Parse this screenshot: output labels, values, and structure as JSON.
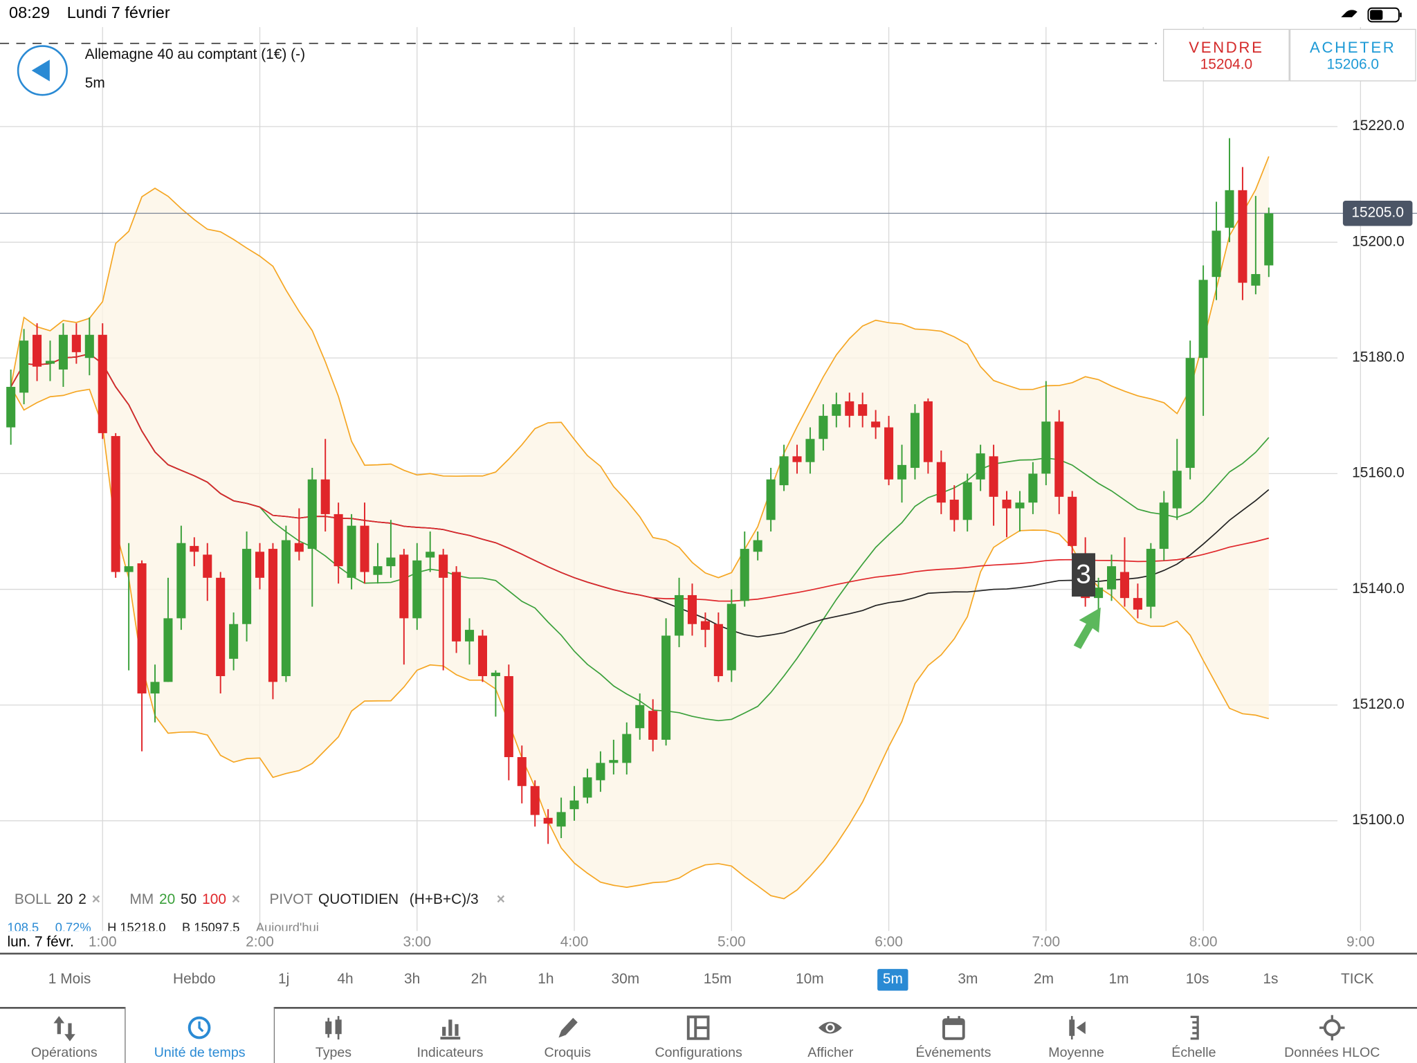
{
  "status_bar": {
    "time": "08:29",
    "date": "Lundi 7 février"
  },
  "instrument": {
    "title": "Allemagne 40 au comptant (1€) (-)",
    "timeframe": "5m"
  },
  "trade": {
    "sell_label": "VENDRE",
    "sell_price": "15204.0",
    "buy_label": "ACHETER",
    "buy_price": "15206.0"
  },
  "colors": {
    "up": "#3aa03a",
    "down": "#e0262a",
    "boll": "#f5a623",
    "ma20": "#3aa03a",
    "ma50": "#222222",
    "ma100": "#e0262a",
    "accent": "#2a8ad4"
  },
  "current_price": {
    "value": 15205.0,
    "label": "15205.0"
  },
  "indicators": {
    "boll": {
      "name": "BOLL",
      "p1": "20",
      "p2": "2"
    },
    "mm": {
      "name": "MM",
      "p1": "20",
      "p2": "50",
      "p3": "100"
    },
    "pivot": {
      "name": "PIVOT",
      "p1": "QUOTIDIEN",
      "p2": "(H+B+C)/3"
    },
    "remove": "×"
  },
  "stats": {
    "change": "108.5",
    "change_pct": "0.72%",
    "high": "H 15218.0",
    "low": "B 15097.5",
    "period": "Aujourd'hui"
  },
  "marker": {
    "label": "3",
    "time_index": 82
  },
  "chart_data": {
    "type": "candlestick",
    "interval": "5m",
    "first_candle_time": "0:25",
    "date_label": "lun. 7 févr.",
    "ylim": [
      15085,
      15230
    ],
    "yticks": [
      15220,
      15200,
      15180,
      15160,
      15140,
      15120,
      15100
    ],
    "ytick_labels": [
      "15220.0",
      "15200.0",
      "15180.0",
      "15160.0",
      "15140.0",
      "15120.0",
      "15100.0"
    ],
    "xticks": [
      {
        "label": "1:00",
        "index": 7
      },
      {
        "label": "2:00",
        "index": 19
      },
      {
        "label": "3:00",
        "index": 31
      },
      {
        "label": "4:00",
        "index": 43
      },
      {
        "label": "5:00",
        "index": 55
      },
      {
        "label": "6:00",
        "index": 67
      },
      {
        "label": "7:00",
        "index": 79
      },
      {
        "label": "8:00",
        "index": 91
      },
      {
        "label": "9:00",
        "index": 103
      }
    ],
    "ohlc": [
      [
        15168,
        15178,
        15165,
        15175
      ],
      [
        15174,
        15185,
        15172,
        15183
      ],
      [
        15184,
        15186,
        15176,
        15178.5
      ],
      [
        15179,
        15183,
        15176,
        15179.5
      ],
      [
        15178,
        15186,
        15175,
        15184
      ],
      [
        15184,
        15186,
        15179,
        15181
      ],
      [
        15180,
        15187,
        15177,
        15184
      ],
      [
        15184,
        15186,
        15166,
        15167
      ],
      [
        15166.5,
        15167,
        15142,
        15143
      ],
      [
        15143,
        15148,
        15126,
        15144
      ],
      [
        15144.5,
        15145,
        15112,
        15122
      ],
      [
        15122,
        15127,
        15117,
        15124
      ],
      [
        15124,
        15142,
        15124,
        15135
      ],
      [
        15135,
        15151,
        15133,
        15148
      ],
      [
        15147.5,
        15149,
        15144,
        15146.5
      ],
      [
        15146,
        15148,
        15138,
        15142
      ],
      [
        15142,
        15143,
        15122,
        15125
      ],
      [
        15128,
        15136,
        15126,
        15134
      ],
      [
        15134,
        15150,
        15131,
        15147
      ],
      [
        15146.5,
        15148,
        15140,
        15142
      ],
      [
        15147,
        15148,
        15121,
        15124
      ],
      [
        15125,
        15151,
        15124,
        15148.5
      ],
      [
        15148,
        15154,
        15145,
        15146.5
      ],
      [
        15147,
        15161,
        15137,
        15159
      ],
      [
        15159,
        15166,
        15150,
        15153
      ],
      [
        15153,
        15155,
        15141,
        15144
      ],
      [
        15142,
        15153,
        15140,
        15151
      ],
      [
        15151,
        15155,
        15141,
        15143
      ],
      [
        15142.5,
        15148,
        15141,
        15144
      ],
      [
        15144,
        15152,
        15142,
        15145.5
      ],
      [
        15146,
        15147,
        15127,
        15135
      ],
      [
        15135,
        15148,
        15133,
        15145
      ],
      [
        15145.5,
        15150,
        15143,
        15146.5
      ],
      [
        15146,
        15147,
        15126,
        15142
      ],
      [
        15143,
        15144,
        15129,
        15131
      ],
      [
        15131,
        15135,
        15127,
        15133
      ],
      [
        15132,
        15133,
        15124,
        15125
      ],
      [
        15125,
        15126,
        15118,
        15125.6
      ],
      [
        15125,
        15127,
        15107,
        15111
      ],
      [
        15111,
        15113,
        15103,
        15106
      ],
      [
        15106,
        15107,
        15099,
        15101
      ],
      [
        15100.5,
        15102,
        15096,
        15099.5
      ],
      [
        15099,
        15104,
        15097,
        15101.5
      ],
      [
        15102,
        15106,
        15100,
        15103.5
      ],
      [
        15104,
        15109,
        15103,
        15107.5
      ],
      [
        15107,
        15112,
        15105,
        15110
      ],
      [
        15110,
        15114,
        15108,
        15110.5
      ],
      [
        15110,
        15117,
        15108,
        15115
      ],
      [
        15116,
        15122,
        15114,
        15120
      ],
      [
        15119,
        15121,
        15112,
        15114
      ],
      [
        15114,
        15135,
        15113,
        15132
      ],
      [
        15132,
        15142,
        15130,
        15139
      ],
      [
        15139,
        15141,
        15132,
        15134
      ],
      [
        15134.5,
        15136,
        15130,
        15133
      ],
      [
        15134,
        15136,
        15124,
        15125
      ],
      [
        15126,
        15140,
        15124,
        15137.5
      ],
      [
        15138,
        15150,
        15137,
        15147
      ],
      [
        15146.5,
        15150,
        15145,
        15148.5
      ],
      [
        15152,
        15161,
        15150,
        15159
      ],
      [
        15158,
        15165,
        15157,
        15163
      ],
      [
        15163,
        15165,
        15160,
        15162
      ],
      [
        15162,
        15168,
        15160,
        15166
      ],
      [
        15166,
        15172,
        15164,
        15170
      ],
      [
        15170,
        15174,
        15168,
        15172
      ],
      [
        15172.5,
        15174,
        15168,
        15170
      ],
      [
        15172,
        15174,
        15168,
        15170
      ],
      [
        15169,
        15171,
        15166,
        15168
      ],
      [
        15168,
        15170,
        15158,
        15159
      ],
      [
        15159,
        15165,
        15155,
        15161.5
      ],
      [
        15161,
        15172,
        15159,
        15170.5
      ],
      [
        15172.5,
        15173,
        15160,
        15162
      ],
      [
        15162,
        15164,
        15153,
        15155
      ],
      [
        15155.5,
        15158,
        15150,
        15152
      ],
      [
        15152,
        15160,
        15150,
        15158.5
      ],
      [
        15159,
        15165,
        15157,
        15163.5
      ],
      [
        15163,
        15165,
        15151,
        15156
      ],
      [
        15155.5,
        15157,
        15149,
        15154
      ],
      [
        15154,
        15157,
        15150,
        15155
      ],
      [
        15155,
        15162,
        15153,
        15160
      ],
      [
        15160,
        15176,
        15158,
        15169
      ],
      [
        15169,
        15171,
        15153,
        15156
      ],
      [
        15156,
        15157,
        15146,
        15147.5
      ],
      [
        15146,
        15149,
        15137,
        15138.5
      ],
      [
        15138.5,
        15142,
        15136,
        15140.3
      ],
      [
        15140,
        15146,
        15138,
        15144
      ],
      [
        15143,
        15149,
        15137,
        15138.5
      ],
      [
        15138.5,
        15141,
        15135,
        15136.5
      ],
      [
        15137,
        15148,
        15135,
        15147
      ],
      [
        15147,
        15157,
        15145,
        15155
      ],
      [
        15154,
        15166,
        15152,
        15160.5
      ],
      [
        15161,
        15183,
        15159,
        15180
      ],
      [
        15180,
        15196,
        15170,
        15193.5
      ],
      [
        15194,
        15207,
        15190,
        15202
      ],
      [
        15202.5,
        15218,
        15200,
        15209
      ],
      [
        15209,
        15213,
        15190,
        15193
      ],
      [
        15192.5,
        15208,
        15191,
        15194.5
      ],
      [
        15196,
        15206,
        15194,
        15205
      ]
    ]
  },
  "timeframes": [
    {
      "label": "1 Mois"
    },
    {
      "label": "Hebdo"
    },
    {
      "label": "1j"
    },
    {
      "label": "4h"
    },
    {
      "label": "3h"
    },
    {
      "label": "2h"
    },
    {
      "label": "1h"
    },
    {
      "label": "30m"
    },
    {
      "label": "15m"
    },
    {
      "label": "10m"
    },
    {
      "label": "5m",
      "selected": true
    },
    {
      "label": "3m"
    },
    {
      "label": "2m"
    },
    {
      "label": "1m"
    },
    {
      "label": "10s"
    },
    {
      "label": "1s"
    },
    {
      "label": "TICK"
    }
  ],
  "toolbar": [
    {
      "label": "Opérations",
      "icon": "arrows-updown-icon"
    },
    {
      "label": "Unité de temps",
      "icon": "clock-icon",
      "selected": true
    },
    {
      "label": "Types",
      "icon": "candles-icon"
    },
    {
      "label": "Indicateurs",
      "icon": "bar-chart-icon"
    },
    {
      "label": "Croquis",
      "icon": "pencil-icon"
    },
    {
      "label": "Configurations",
      "icon": "layout-icon"
    },
    {
      "label": "Afficher",
      "icon": "eye-icon"
    },
    {
      "label": "Événements",
      "icon": "calendar-icon"
    },
    {
      "label": "Moyenne",
      "icon": "average-icon"
    },
    {
      "label": "Échelle",
      "icon": "scale-icon"
    },
    {
      "label": "Données HLOC",
      "icon": "crosshair-icon"
    }
  ]
}
